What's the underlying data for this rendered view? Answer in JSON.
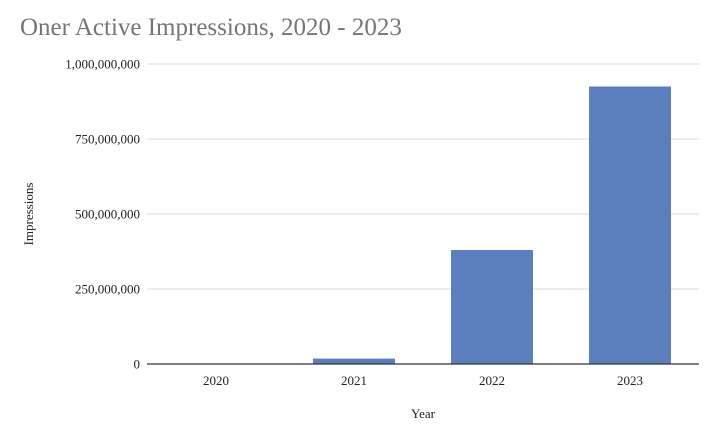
{
  "chart_data": {
    "type": "bar",
    "title": "Oner Active Impressions, 2020 - 2023",
    "xlabel": "Year",
    "ylabel": "Impressions",
    "categories": [
      "2020",
      "2021",
      "2022",
      "2023"
    ],
    "values": [
      0,
      18000000,
      380000000,
      925000000
    ],
    "ylim": [
      0,
      1000000000
    ],
    "yticks": [
      0,
      250000000,
      500000000,
      750000000,
      1000000000
    ],
    "ytick_labels": [
      "0",
      "250,000,000",
      "500,000,000",
      "750,000,000",
      "1,000,000,000"
    ],
    "grid": true,
    "legend": "none",
    "bar_color": "#5b7fbc",
    "grid_color": "#d9d9d9",
    "axis_color": "#333333"
  }
}
